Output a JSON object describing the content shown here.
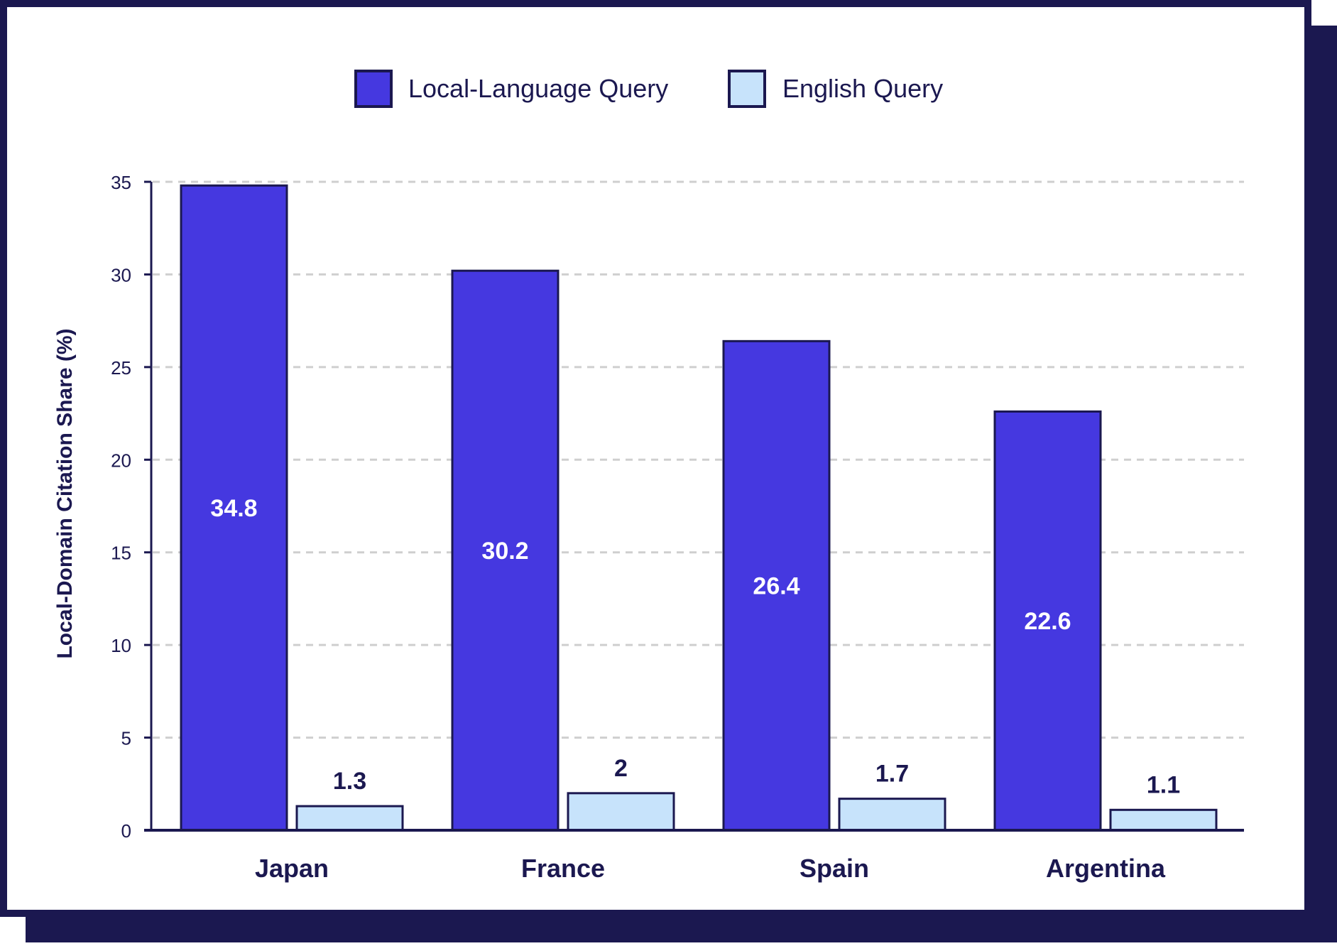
{
  "colors": {
    "frame": "#1b1850",
    "paper": "#ffffff",
    "ink": "#1b1850",
    "local": "#4538e0",
    "english": "#c7e3fb",
    "grid": "#cfcfcf"
  },
  "chart_data": {
    "type": "bar",
    "title": "",
    "xlabel": "",
    "ylabel": "Local-Domain Citation Share (%)",
    "categories": [
      "Japan",
      "France",
      "Spain",
      "Argentina"
    ],
    "series": [
      {
        "name": "Local-Language Query",
        "values": [
          34.8,
          30.2,
          26.4,
          22.6
        ],
        "color": "#4538e0",
        "labels": [
          "34.8",
          "30.2",
          "26.4",
          "22.6"
        ],
        "label_position": "inside"
      },
      {
        "name": "English Query",
        "values": [
          1.3,
          2,
          1.7,
          1.1
        ],
        "color": "#c7e3fb",
        "labels": [
          "1.3",
          "2",
          "1.7",
          "1.1"
        ],
        "label_position": "above"
      }
    ],
    "ylim": [
      0,
      35
    ],
    "yticks": [
      0,
      5,
      10,
      15,
      20,
      25,
      30,
      35
    ],
    "ytick_labels": [
      "0",
      "5",
      "10",
      "15",
      "20",
      "25",
      "30",
      "35"
    ],
    "grid": "horizontal dashed",
    "legend": "top-center"
  }
}
